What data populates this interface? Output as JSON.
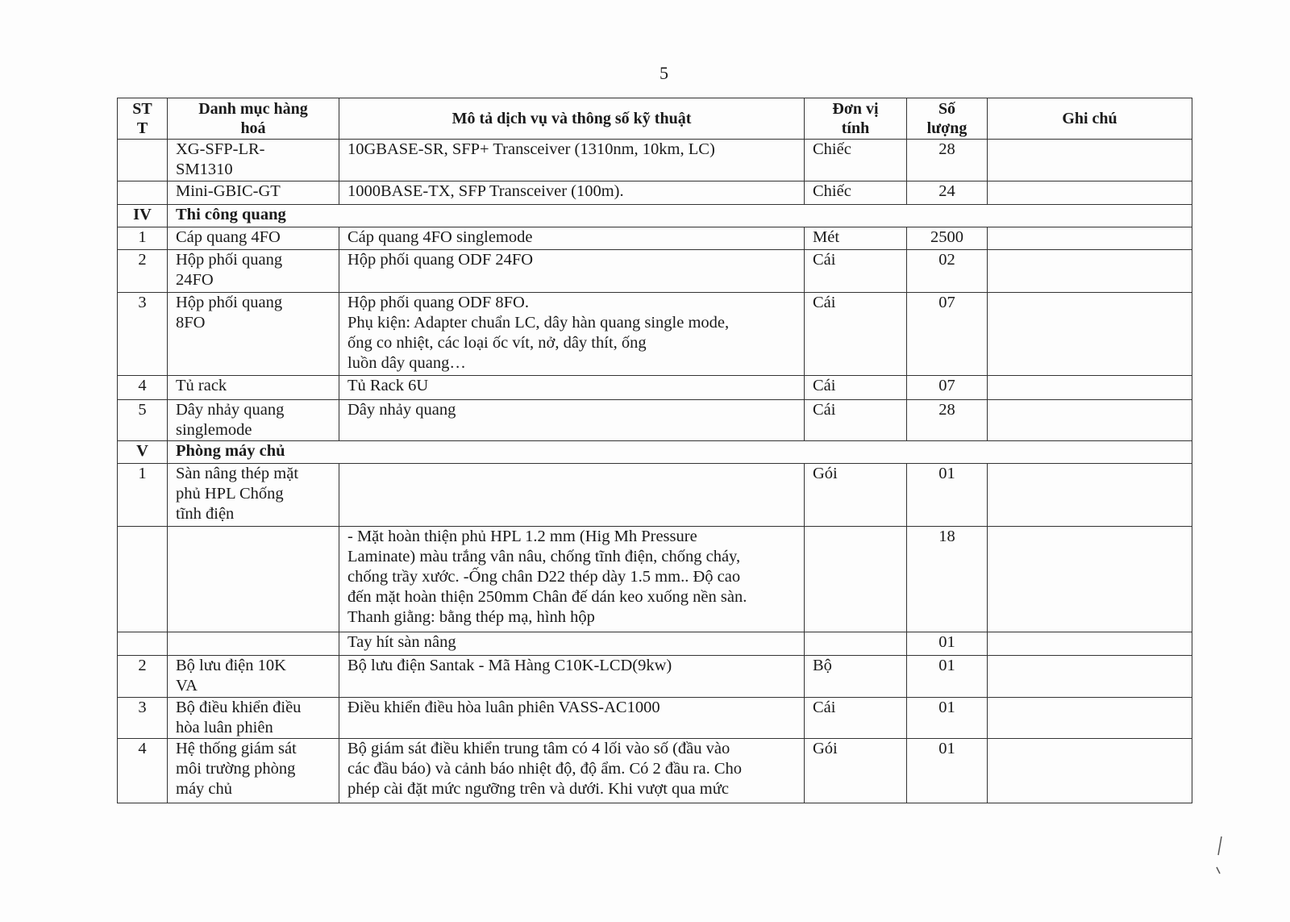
{
  "page_number": "5",
  "table": {
    "headers": [
      "ST\nT",
      "Danh mục hàng\nhoá",
      "Mô tả dịch vụ và thông số kỹ thuật",
      "Đơn vị\ntính",
      "Số\nlượng",
      "Ghi chú"
    ],
    "rows": [
      {
        "stt": "",
        "name": "XG-SFP-LR-\nSM1310",
        "desc": "10GBASE-SR, SFP+ Transceiver (1310nm, 10km, LC)",
        "unit": "Chiếc",
        "qty": "28",
        "note": ""
      },
      {
        "stt": "",
        "name": "Mini-GBIC-GT",
        "desc": "1000BASE-TX, SFP Transceiver (100m).",
        "unit": "Chiếc",
        "qty": "24",
        "note": ""
      },
      {
        "section": true,
        "stt": "IV",
        "name": "Thi công quang"
      },
      {
        "stt": "1",
        "name": "Cáp quang 4FO",
        "desc": "Cáp quang 4FO singlemode",
        "unit": "Mét",
        "qty": "2500",
        "note": ""
      },
      {
        "stt": "2",
        "name": "Hộp phối quang\n24FO",
        "desc": "Hộp phối quang ODF 24FO",
        "unit": "Cái",
        "qty": "02",
        "note": ""
      },
      {
        "stt": "3",
        "name": "Hộp phối quang\n8FO",
        "desc": "Hộp phối quang ODF 8FO.\nPhụ kiện: Adapter chuẩn LC, dây hàn quang single mode,\nống co nhiệt, các loại ốc vít, nở, dây thít, ống\nluồn dây quang…",
        "unit": "Cái",
        "qty": "07",
        "note": ""
      },
      {
        "stt": "4",
        "name": "Tủ rack",
        "desc": "Tủ Rack 6U",
        "unit": "Cái",
        "qty": "07",
        "note": ""
      },
      {
        "stt": "5",
        "name": "Dây nhảy quang\nsinglemode",
        "desc": "Dây nhảy quang",
        "unit": "Cái",
        "qty": "28",
        "note": ""
      },
      {
        "section": true,
        "stt": "V",
        "name": "Phòng máy chủ"
      },
      {
        "stt": "1",
        "name": "Sàn nâng thép mặt\nphủ HPL Chống\ntĩnh điện",
        "desc": "",
        "unit": "Gói",
        "qty": "01",
        "note": ""
      },
      {
        "stt": "",
        "name": "",
        "desc": "- Mặt hoàn thiện phủ HPL 1.2 mm (Hig Mh Pressure\nLaminate) màu trắng vân nâu, chống tĩnh điện, chống cháy,\nchống trầy xước. -Ống chân D22 thép dày 1.5 mm.. Độ cao\nđến mặt hoàn thiện 250mm Chân đế dán keo xuống nền sàn.\nThanh giằng: bằng thép mạ, hình hộp",
        "unit": "",
        "qty": "18",
        "note": ""
      },
      {
        "stt": "",
        "name": "",
        "desc": "Tay hít sàn nâng",
        "unit": "",
        "qty": "01",
        "note": ""
      },
      {
        "stt": "2",
        "name": "Bộ lưu điện 10K\nVA",
        "desc": "Bộ lưu điện Santak - Mã Hàng C10K-LCD(9kw)",
        "unit": "Bộ",
        "qty": "01",
        "note": ""
      },
      {
        "stt": "3",
        "name": "Bộ điều khiển điều\nhòa luân phiên",
        "desc": " Điều khiển điều hòa luân phiên VASS-AC1000",
        "unit": "Cái",
        "qty": "01",
        "note": ""
      },
      {
        "stt": "4",
        "name": "Hệ thống giám sát\nmôi trường phòng\nmáy chủ",
        "desc": " Bộ giám sát điều khiển trung tâm có 4 lối vào số (đầu vào\ncác đầu báo) và cảnh báo nhiệt độ, độ ẩm. Có 2 đầu ra. Cho\nphép cài đặt mức ngưỡng trên và dưới. Khi vượt qua mức",
        "unit": "Gói",
        "qty": "01",
        "note": ""
      }
    ]
  }
}
